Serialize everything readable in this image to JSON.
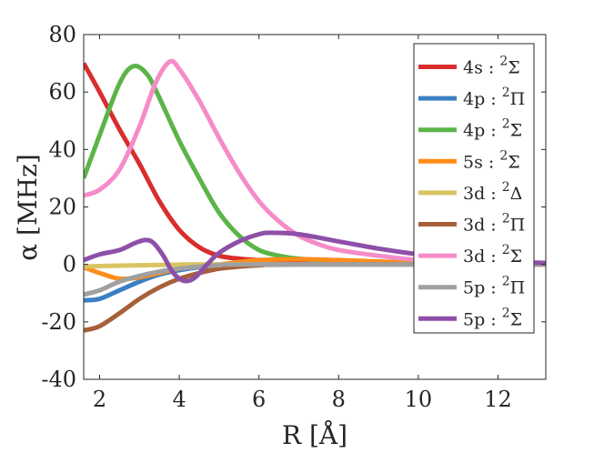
{
  "chart_data": {
    "type": "line",
    "title": "",
    "xlabel": "R [Å]",
    "ylabel": "α [MHz]",
    "xlim": [
      1.6,
      13.2
    ],
    "ylim": [
      -40,
      80
    ],
    "xticks": [
      2,
      4,
      6,
      8,
      10,
      12
    ],
    "yticks": [
      -40,
      -20,
      0,
      20,
      40,
      60,
      80
    ],
    "xtick_labels": [
      "2",
      "4",
      "6",
      "8",
      "10",
      "12"
    ],
    "ytick_labels": [
      "-40",
      "-20",
      "0",
      "20",
      "40",
      "60",
      "80"
    ],
    "grid": false,
    "legend_position": "top-right",
    "series": [
      {
        "name": "4s : 2Σ",
        "state": "4s",
        "term": "Σ",
        "color": "#D92D2D",
        "points": [
          [
            1.6,
            70
          ],
          [
            2.0,
            60
          ],
          [
            2.5,
            47
          ],
          [
            3.0,
            35
          ],
          [
            3.5,
            22
          ],
          [
            4.0,
            12
          ],
          [
            4.5,
            6
          ],
          [
            5.0,
            3
          ],
          [
            5.5,
            2
          ],
          [
            6,
            1.5
          ],
          [
            7,
            0.8
          ],
          [
            8,
            0.4
          ],
          [
            9,
            0.2
          ],
          [
            10,
            0.1
          ],
          [
            11,
            0
          ],
          [
            12,
            0
          ],
          [
            13.2,
            0
          ]
        ]
      },
      {
        "name": "4p : 2Π",
        "state": "4p",
        "term": "Π",
        "color": "#3A7FC3",
        "points": [
          [
            1.6,
            -12.5
          ],
          [
            2.0,
            -12
          ],
          [
            2.5,
            -9
          ],
          [
            3.0,
            -6
          ],
          [
            3.5,
            -3.5
          ],
          [
            4.0,
            -2
          ],
          [
            4.5,
            -1
          ],
          [
            5.0,
            -0.5
          ],
          [
            6,
            -0.2
          ],
          [
            7,
            0
          ],
          [
            13.2,
            0
          ]
        ]
      },
      {
        "name": "4p : 2Σ",
        "state": "4p",
        "term": "Σ",
        "color": "#5CB448",
        "points": [
          [
            1.6,
            30
          ],
          [
            2.0,
            45
          ],
          [
            2.5,
            63
          ],
          [
            2.85,
            69
          ],
          [
            3.2,
            66
          ],
          [
            3.5,
            58
          ],
          [
            4.0,
            43
          ],
          [
            4.5,
            30
          ],
          [
            5.0,
            18
          ],
          [
            5.5,
            10
          ],
          [
            6.0,
            5
          ],
          [
            6.5,
            3
          ],
          [
            7,
            2
          ],
          [
            8,
            1
          ],
          [
            9,
            0.5
          ],
          [
            10,
            0.2
          ],
          [
            11,
            0
          ],
          [
            13.2,
            0
          ]
        ]
      },
      {
        "name": "5s : 2Σ",
        "state": "5s",
        "term": "Σ",
        "color": "#FF8C1A",
        "points": [
          [
            1.6,
            -1
          ],
          [
            2.0,
            -3
          ],
          [
            2.5,
            -5
          ],
          [
            3.0,
            -4.5
          ],
          [
            3.5,
            -3
          ],
          [
            4.0,
            -1.5
          ],
          [
            4.5,
            -0.5
          ],
          [
            5,
            0
          ],
          [
            5.5,
            0.8
          ],
          [
            6,
            1.5
          ],
          [
            7,
            1.8
          ],
          [
            8,
            1.5
          ],
          [
            9,
            1
          ],
          [
            10,
            0.5
          ],
          [
            11,
            0.1
          ],
          [
            13.2,
            0
          ]
        ]
      },
      {
        "name": "3d : 2Δ",
        "state": "3d",
        "term": "Δ",
        "color": "#D9C462",
        "points": [
          [
            1.6,
            -0.8
          ],
          [
            2,
            -0.6
          ],
          [
            3,
            -0.3
          ],
          [
            4,
            -0.1
          ],
          [
            5,
            0
          ],
          [
            13.2,
            0
          ]
        ]
      },
      {
        "name": "3d : 2Π",
        "state": "3d",
        "term": "Π",
        "color": "#A6603A",
        "points": [
          [
            1.6,
            -23
          ],
          [
            2.0,
            -21.5
          ],
          [
            2.5,
            -17
          ],
          [
            3.0,
            -12
          ],
          [
            3.5,
            -8
          ],
          [
            4.0,
            -5
          ],
          [
            4.5,
            -3
          ],
          [
            5.0,
            -1.5
          ],
          [
            5.5,
            -0.8
          ],
          [
            6,
            -0.3
          ],
          [
            7,
            0
          ],
          [
            13.2,
            0
          ]
        ]
      },
      {
        "name": "3d : 2Σ",
        "state": "3d",
        "term": "Σ",
        "color": "#F58CC8",
        "points": [
          [
            1.6,
            24
          ],
          [
            2.0,
            26
          ],
          [
            2.5,
            33
          ],
          [
            3.0,
            48
          ],
          [
            3.4,
            63
          ],
          [
            3.75,
            70.5
          ],
          [
            4.0,
            68
          ],
          [
            4.5,
            57
          ],
          [
            5.0,
            44
          ],
          [
            5.5,
            32
          ],
          [
            6.0,
            22
          ],
          [
            6.5,
            15
          ],
          [
            7,
            10
          ],
          [
            7.5,
            7
          ],
          [
            8,
            5
          ],
          [
            9,
            3
          ],
          [
            10,
            1.5
          ],
          [
            11,
            0.5
          ],
          [
            12,
            0.1
          ],
          [
            13.2,
            0
          ]
        ]
      },
      {
        "name": "5p : 2Π",
        "state": "5p",
        "term": "Π",
        "color": "#A0A0A0",
        "points": [
          [
            1.6,
            -10.5
          ],
          [
            2.0,
            -9
          ],
          [
            2.5,
            -6
          ],
          [
            3.0,
            -4
          ],
          [
            3.5,
            -2.5
          ],
          [
            4.0,
            -1.5
          ],
          [
            4.5,
            -0.8
          ],
          [
            5,
            -0.3
          ],
          [
            6,
            0
          ],
          [
            13.2,
            0
          ]
        ]
      },
      {
        "name": "5p : 2Σ",
        "state": "5p",
        "term": "Σ",
        "color": "#8E4FA8",
        "points": [
          [
            1.6,
            1.5
          ],
          [
            2.0,
            3.5
          ],
          [
            2.5,
            5
          ],
          [
            2.9,
            7.5
          ],
          [
            3.15,
            8.5
          ],
          [
            3.35,
            7.5
          ],
          [
            3.6,
            3
          ],
          [
            3.8,
            -2
          ],
          [
            4.0,
            -5
          ],
          [
            4.2,
            -5.8
          ],
          [
            4.4,
            -4.5
          ],
          [
            4.7,
            0
          ],
          [
            5.0,
            4
          ],
          [
            5.5,
            8
          ],
          [
            6.0,
            10.5
          ],
          [
            6.3,
            11
          ],
          [
            7,
            10.5
          ],
          [
            8,
            8
          ],
          [
            9,
            5.5
          ],
          [
            10,
            3.5
          ],
          [
            11,
            2
          ],
          [
            12,
            1
          ],
          [
            13.2,
            0.5
          ]
        ]
      }
    ]
  }
}
